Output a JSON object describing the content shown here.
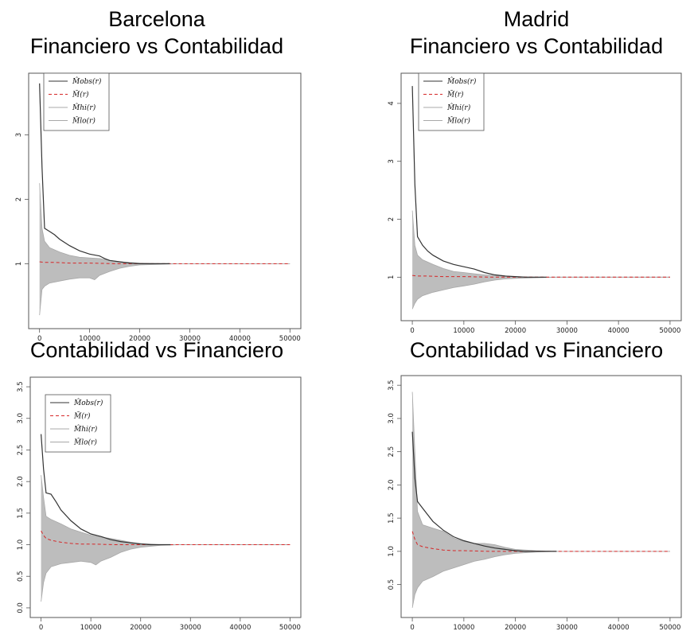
{
  "titles": {
    "barcelona_city": "Barcelona",
    "madrid_city": "Madrid",
    "barcelona_top": "Financiero vs Contabilidad",
    "madrid_top": "Financiero vs Contabilidad",
    "barcelona_bottom": "Contabilidad vs Financiero",
    "madrid_bottom": "Contabilidad vs Financiero"
  },
  "colors": {
    "observed": "#333333",
    "mean": "#d62728",
    "envelope": "#bdbdbd",
    "axes": "#555555"
  },
  "chart_data": [
    {
      "id": "barcelona-fin-vs-cont",
      "type": "line",
      "title": "Barcelona Financiero vs Contabilidad",
      "xlim": [
        0,
        50000
      ],
      "ylim": [
        0.15,
        3.8
      ],
      "xticks": [
        0,
        10000,
        20000,
        30000,
        40000,
        50000
      ],
      "yticks": [
        1,
        2,
        3
      ],
      "grid": false,
      "legend": {
        "position": "top-left",
        "entries": [
          {
            "label": "M̂obs(r)",
            "style": "solid-dark"
          },
          {
            "label": "M̄(r)",
            "style": "dashed-red"
          },
          {
            "label": "M̂hi(r)",
            "style": "solid-light"
          },
          {
            "label": "M̂lo(r)",
            "style": "solid-light"
          }
        ]
      },
      "series": [
        {
          "name": "M̂obs(r)",
          "x": [
            0,
            500,
            1000,
            2000,
            3000,
            4000,
            6000,
            8000,
            10000,
            12000,
            13000,
            14000,
            16000,
            18000,
            20000,
            22000,
            24000,
            26000
          ],
          "y": [
            3.8,
            2.5,
            1.55,
            1.5,
            1.45,
            1.38,
            1.28,
            1.2,
            1.15,
            1.12,
            1.08,
            1.05,
            1.03,
            1.01,
            1.0,
            1.0,
            1.0,
            1.0
          ]
        },
        {
          "name": "M̄(r)",
          "x": [
            0,
            1000,
            3000,
            6000,
            10000,
            15000,
            20000,
            30000,
            40000,
            50000
          ],
          "y": [
            1.03,
            1.02,
            1.02,
            1.01,
            1.01,
            1.0,
            1.0,
            1.0,
            1.0,
            1.0
          ]
        },
        {
          "name": "M̂hi(r)",
          "x": [
            0,
            500,
            1000,
            2000,
            4000,
            6000,
            8000,
            10000,
            12000,
            14000,
            16000,
            18000,
            20000,
            24000,
            28000,
            30000,
            40000,
            50000
          ],
          "y": [
            2.25,
            1.55,
            1.35,
            1.25,
            1.18,
            1.13,
            1.1,
            1.09,
            1.08,
            1.05,
            1.03,
            1.02,
            1.01,
            1.0,
            1.0,
            1.0,
            1.0,
            1.0
          ]
        },
        {
          "name": "M̂lo(r)",
          "x": [
            0,
            500,
            1000,
            2000,
            4000,
            6000,
            8000,
            10000,
            11000,
            12000,
            14000,
            16000,
            18000,
            20000,
            24000,
            28000,
            30000,
            40000,
            50000
          ],
          "y": [
            0.2,
            0.6,
            0.65,
            0.7,
            0.73,
            0.76,
            0.78,
            0.78,
            0.75,
            0.82,
            0.88,
            0.93,
            0.96,
            0.98,
            0.99,
            1.0,
            1.0,
            1.0,
            1.0
          ]
        }
      ]
    },
    {
      "id": "madrid-fin-vs-cont",
      "type": "line",
      "title": "Madrid Financiero vs Contabilidad",
      "xlim": [
        0,
        50000
      ],
      "ylim": [
        0.42,
        4.35
      ],
      "xticks": [
        0,
        10000,
        20000,
        30000,
        40000,
        50000
      ],
      "yticks": [
        1,
        2,
        3,
        4
      ],
      "grid": false,
      "legend": {
        "position": "top-left",
        "entries": [
          {
            "label": "M̂obs(r)",
            "style": "solid-dark"
          },
          {
            "label": "M̄(r)",
            "style": "dashed-red"
          },
          {
            "label": "M̂hi(r)",
            "style": "solid-light"
          },
          {
            "label": "M̂lo(r)",
            "style": "solid-light"
          }
        ]
      },
      "series": [
        {
          "name": "M̂obs(r)",
          "x": [
            0,
            500,
            1000,
            2000,
            3000,
            4000,
            6000,
            8000,
            10000,
            12000,
            14000,
            16000,
            18000,
            20000,
            22000,
            24000,
            26000
          ],
          "y": [
            4.3,
            2.6,
            1.7,
            1.55,
            1.45,
            1.38,
            1.28,
            1.22,
            1.18,
            1.14,
            1.08,
            1.04,
            1.02,
            1.01,
            1.0,
            1.0,
            1.0
          ]
        },
        {
          "name": "M̄(r)",
          "x": [
            0,
            1000,
            3000,
            6000,
            10000,
            15000,
            20000,
            30000,
            40000,
            50000
          ],
          "y": [
            1.03,
            1.02,
            1.02,
            1.01,
            1.01,
            1.0,
            1.0,
            1.0,
            1.0,
            1.0
          ]
        },
        {
          "name": "M̂hi(r)",
          "x": [
            0,
            500,
            1000,
            2000,
            4000,
            6000,
            8000,
            10000,
            12000,
            14000,
            16000,
            18000,
            20000,
            24000,
            28000,
            30000,
            40000,
            50000
          ],
          "y": [
            2.15,
            1.55,
            1.38,
            1.3,
            1.22,
            1.15,
            1.1,
            1.08,
            1.06,
            1.04,
            1.03,
            1.02,
            1.01,
            1.0,
            1.0,
            1.0,
            1.0,
            1.0
          ]
        },
        {
          "name": "M̂lo(r)",
          "x": [
            0,
            500,
            1000,
            2000,
            4000,
            6000,
            8000,
            10000,
            12000,
            14000,
            16000,
            18000,
            20000,
            24000,
            28000,
            30000,
            40000,
            50000
          ],
          "y": [
            0.45,
            0.55,
            0.62,
            0.68,
            0.74,
            0.78,
            0.82,
            0.85,
            0.88,
            0.92,
            0.95,
            0.97,
            0.98,
            0.99,
            1.0,
            1.0,
            1.0,
            1.0
          ]
        }
      ]
    },
    {
      "id": "barcelona-cont-vs-fin",
      "type": "line",
      "title": "Barcelona Contabilidad vs Financiero",
      "xlim": [
        0,
        50000
      ],
      "ylim": [
        0.0,
        3.5
      ],
      "xticks": [
        0,
        10000,
        20000,
        30000,
        40000,
        50000
      ],
      "yticks": [
        0.0,
        0.5,
        1.0,
        1.5,
        2.0,
        2.5,
        3.0,
        3.5
      ],
      "grid": false,
      "legend": {
        "position": "top-left",
        "entries": [
          {
            "label": "M̂obs(r)",
            "style": "solid-dark"
          },
          {
            "label": "M̄(r)",
            "style": "dashed-red"
          },
          {
            "label": "M̂hi(r)",
            "style": "solid-light"
          },
          {
            "label": "M̂lo(r)",
            "style": "solid-light"
          }
        ]
      },
      "series": [
        {
          "name": "M̂obs(r)",
          "x": [
            0,
            500,
            1000,
            2000,
            3000,
            4000,
            6000,
            8000,
            10000,
            12000,
            14000,
            16000,
            18000,
            20000,
            22000,
            24000,
            26000
          ],
          "y": [
            2.75,
            2.2,
            1.82,
            1.8,
            1.68,
            1.55,
            1.38,
            1.25,
            1.17,
            1.13,
            1.08,
            1.05,
            1.03,
            1.01,
            1.0,
            1.0,
            1.0
          ]
        },
        {
          "name": "M̄(r)",
          "x": [
            0,
            500,
            1000,
            2000,
            4000,
            6000,
            8000,
            10000,
            15000,
            20000,
            30000,
            40000,
            50000
          ],
          "y": [
            1.22,
            1.15,
            1.1,
            1.07,
            1.04,
            1.02,
            1.01,
            1.01,
            1.0,
            1.0,
            1.0,
            1.0,
            1.0
          ]
        },
        {
          "name": "M̂hi(r)",
          "x": [
            0,
            500,
            1000,
            2000,
            4000,
            6000,
            8000,
            10000,
            12000,
            14000,
            16000,
            18000,
            20000,
            24000,
            28000,
            30000,
            40000,
            50000
          ],
          "y": [
            2.1,
            1.75,
            1.45,
            1.4,
            1.33,
            1.25,
            1.2,
            1.15,
            1.12,
            1.1,
            1.07,
            1.04,
            1.02,
            1.0,
            1.0,
            1.0,
            1.0,
            1.0
          ]
        },
        {
          "name": "M̂lo(r)",
          "x": [
            0,
            500,
            1000,
            2000,
            4000,
            6000,
            8000,
            10000,
            11000,
            12000,
            14000,
            16000,
            18000,
            20000,
            24000,
            28000,
            30000,
            40000,
            50000
          ],
          "y": [
            0.1,
            0.4,
            0.55,
            0.65,
            0.7,
            0.72,
            0.74,
            0.72,
            0.68,
            0.74,
            0.8,
            0.88,
            0.93,
            0.96,
            0.99,
            1.0,
            1.0,
            1.0,
            1.0
          ]
        }
      ]
    },
    {
      "id": "madrid-cont-vs-fin",
      "type": "line",
      "title": "Madrid Contabilidad vs Financiero",
      "xlim": [
        0,
        50000
      ],
      "ylim": [
        0.15,
        3.5
      ],
      "xticks": [
        0,
        10000,
        20000,
        30000,
        40000,
        50000
      ],
      "yticks": [
        0.5,
        1.0,
        1.5,
        2.0,
        2.5,
        3.0,
        3.5
      ],
      "grid": false,
      "legend": null,
      "series": [
        {
          "name": "M̂obs(r)",
          "x": [
            0,
            500,
            1000,
            2000,
            3000,
            4000,
            6000,
            8000,
            10000,
            12000,
            14000,
            16000,
            18000,
            20000,
            22000,
            24000,
            26000,
            28000
          ],
          "y": [
            2.8,
            2.1,
            1.75,
            1.65,
            1.55,
            1.45,
            1.32,
            1.22,
            1.16,
            1.12,
            1.08,
            1.05,
            1.03,
            1.01,
            1.0,
            1.0,
            1.0,
            1.0
          ]
        },
        {
          "name": "M̄(r)",
          "x": [
            0,
            500,
            1000,
            2000,
            4000,
            6000,
            8000,
            10000,
            15000,
            20000,
            30000,
            40000,
            50000
          ],
          "y": [
            1.3,
            1.18,
            1.1,
            1.07,
            1.04,
            1.02,
            1.01,
            1.01,
            1.0,
            1.0,
            1.0,
            1.0,
            1.0
          ]
        },
        {
          "name": "M̂hi(r)",
          "x": [
            0,
            500,
            1000,
            2000,
            4000,
            6000,
            8000,
            10000,
            12000,
            14000,
            16000,
            18000,
            20000,
            24000,
            28000,
            30000,
            40000,
            50000
          ],
          "y": [
            3.4,
            2.5,
            1.6,
            1.4,
            1.35,
            1.3,
            1.2,
            1.15,
            1.12,
            1.12,
            1.1,
            1.06,
            1.03,
            1.01,
            1.0,
            1.0,
            1.0,
            1.0
          ]
        },
        {
          "name": "M̂lo(r)",
          "x": [
            0,
            500,
            1000,
            2000,
            4000,
            6000,
            8000,
            10000,
            12000,
            14000,
            16000,
            18000,
            20000,
            24000,
            28000,
            30000,
            40000,
            50000
          ],
          "y": [
            0.15,
            0.35,
            0.45,
            0.55,
            0.62,
            0.7,
            0.75,
            0.8,
            0.85,
            0.88,
            0.92,
            0.95,
            0.97,
            0.99,
            1.0,
            1.0,
            1.0,
            1.0
          ]
        }
      ]
    }
  ]
}
